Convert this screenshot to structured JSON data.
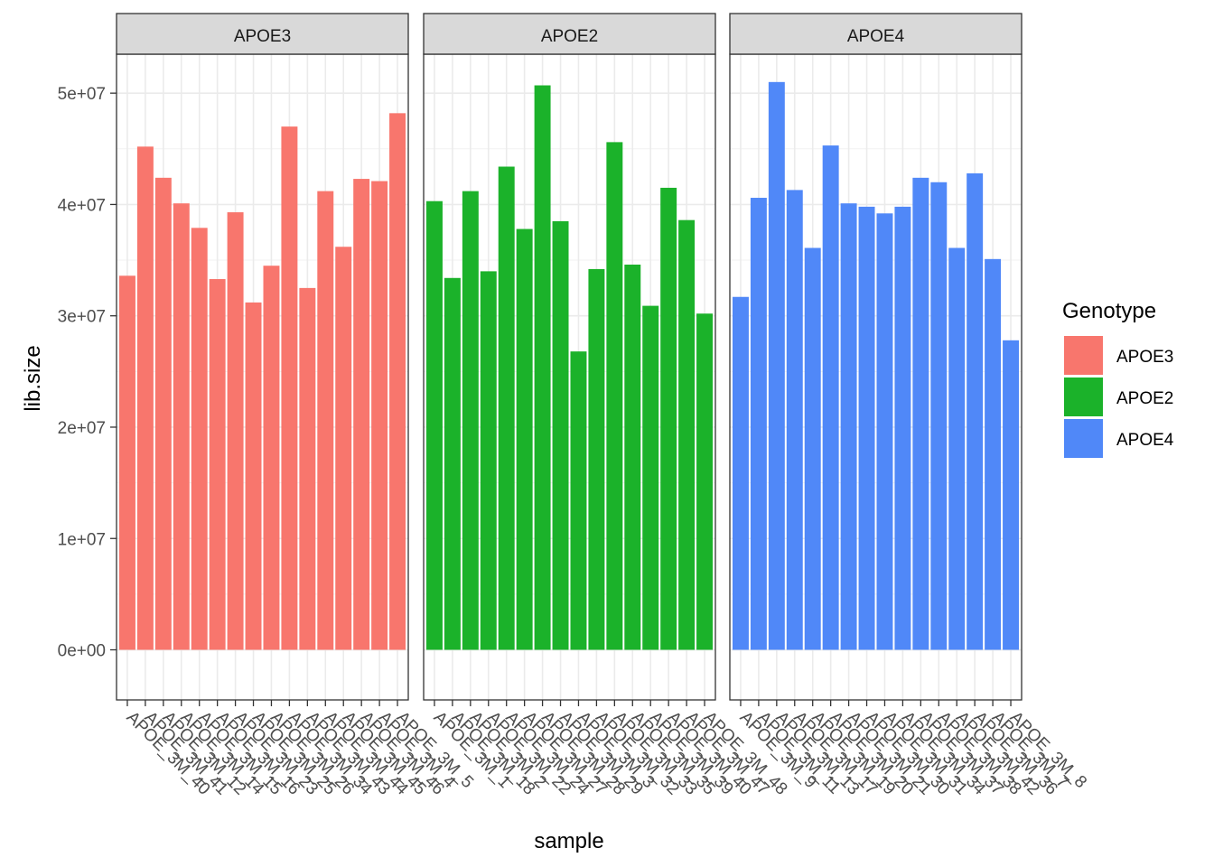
{
  "chart_data": {
    "type": "bar",
    "xlabel": "sample",
    "ylabel": "lib.size",
    "ylim": [
      -4500000,
      53500000
    ],
    "yticks": [
      0,
      10000000,
      20000000,
      30000000,
      40000000,
      50000000
    ],
    "ytick_labels": [
      "0e+00",
      "1e+07",
      "2e+07",
      "3e+07",
      "4e+07",
      "5e+07"
    ],
    "grid": true,
    "facet_by": "Genotype",
    "legend": {
      "title": "Genotype",
      "position": "right",
      "entries": [
        {
          "name": "APOE3",
          "color": "#F8766D"
        },
        {
          "name": "APOE2",
          "color": "#1BB22A"
        },
        {
          "name": "APOE4",
          "color": "#5088F8"
        }
      ]
    },
    "facets": [
      {
        "name": "APOE3",
        "color": "#F8766D",
        "categories": [
          "APOE_3M_40",
          "APOE_3M_41",
          "APOE_3M_12",
          "APOE_3M_14",
          "APOE_3M_15",
          "APOE_3M_16",
          "APOE_3M_23",
          "APOE_3M_25",
          "APOE_3M_26",
          "APOE_3M_34",
          "APOE_3M_43",
          "APOE_3M_44",
          "APOE_3M_45",
          "APOE_3M_46",
          "APOE_3M_4",
          "APOE_3M_5"
        ],
        "values": [
          33600000,
          45200000,
          42400000,
          40100000,
          37900000,
          33300000,
          39300000,
          31200000,
          34500000,
          47000000,
          32500000,
          41200000,
          36200000,
          42300000,
          42100000,
          48200000
        ]
      },
      {
        "name": "APOE2",
        "color": "#1BB22A",
        "categories": [
          "APOE_3M_1",
          "APOE_3M_18",
          "APOE_3M_2",
          "APOE_3M_22",
          "APOE_3M_24",
          "APOE_3M_27",
          "APOE_3M_28",
          "APOE_3M_29",
          "APOE_3M_3",
          "APOE_3M_32",
          "APOE_3M_33",
          "APOE_3M_35",
          "APOE_3M_39",
          "APOE_3M_40",
          "APOE_3M_47",
          "APOE_3M_48"
        ],
        "values": [
          40300000,
          33400000,
          41200000,
          34000000,
          43400000,
          37800000,
          50700000,
          38500000,
          26800000,
          34200000,
          45600000,
          34600000,
          30900000,
          41500000,
          38600000,
          30200000
        ]
      },
      {
        "name": "APOE4",
        "color": "#5088F8",
        "categories": [
          "APOE_3M_9",
          "APOE_3M_11",
          "APOE_3M_13",
          "APOE_3M_17",
          "APOE_3M_19",
          "APOE_3M_20",
          "APOE_3M_21",
          "APOE_3M_30",
          "APOE_3M_31",
          "APOE_3M_34",
          "APOE_3M_37",
          "APOE_3M_38",
          "APOE_3M_42",
          "APOE_3M_36",
          "APOE_3M_7",
          "APOE_3M_8"
        ],
        "values": [
          31700000,
          40600000,
          51000000,
          41300000,
          36100000,
          45300000,
          40100000,
          39800000,
          39200000,
          39800000,
          42400000,
          42000000,
          36100000,
          42800000,
          35100000,
          27800000
        ]
      }
    ]
  }
}
